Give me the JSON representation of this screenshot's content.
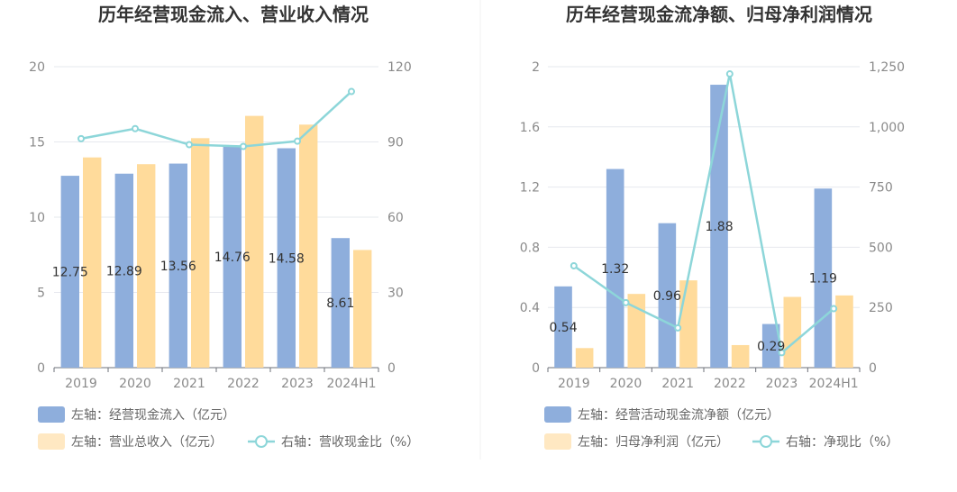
{
  "chart_data": [
    {
      "type": "bar",
      "title": "历年经营现金流入、营业收入情况",
      "categories": [
        "2019",
        "2020",
        "2021",
        "2022",
        "2023",
        "2024H1"
      ],
      "ylim": [
        0,
        20
      ],
      "yticks": [
        "0",
        "5",
        "10",
        "15",
        "20"
      ],
      "y2lim": [
        0,
        120
      ],
      "y2ticks": [
        "0",
        "30",
        "60",
        "90",
        "120"
      ],
      "grid": true,
      "legend_position": "bottom",
      "series": [
        {
          "name": "左轴：经营现金流入（亿元）",
          "kind": "bar",
          "axis": "left",
          "color": "#8eaedc",
          "values": [
            12.75,
            12.89,
            13.56,
            14.76,
            14.58,
            8.61
          ],
          "labels": [
            "12.75",
            "12.89",
            "13.56",
            "14.76",
            "14.58",
            "8.61"
          ]
        },
        {
          "name": "左轴：营业总收入（亿元）",
          "kind": "bar",
          "axis": "left",
          "color": "#ffdb9b",
          "values": [
            13.97,
            13.52,
            15.25,
            16.73,
            16.15,
            7.82
          ]
        },
        {
          "name": "右轴：营收现金比（%）",
          "kind": "line",
          "axis": "right",
          "color": "#8dd6d9",
          "values": [
            91.3,
            95.3,
            88.9,
            88.2,
            90.3,
            110.1
          ]
        }
      ]
    },
    {
      "type": "bar",
      "title": "历年经营现金流净额、归母净利润情况",
      "categories": [
        "2019",
        "2020",
        "2021",
        "2022",
        "2023",
        "2024H1"
      ],
      "ylim": [
        0,
        2
      ],
      "yticks": [
        "0",
        "0.4",
        "0.8",
        "1.2",
        "1.6",
        "2"
      ],
      "y2lim": [
        0,
        1250
      ],
      "y2ticks": [
        "0",
        "250",
        "500",
        "750",
        "1,000",
        "1,250"
      ],
      "grid": true,
      "legend_position": "bottom",
      "series": [
        {
          "name": "左轴：经营活动现金流净额（亿元）",
          "kind": "bar",
          "axis": "left",
          "color": "#8eaedc",
          "values": [
            0.54,
            1.32,
            0.96,
            1.88,
            0.29,
            1.19
          ],
          "labels": [
            "0.54",
            "1.32",
            "0.96",
            "1.88",
            "0.29",
            "1.19"
          ]
        },
        {
          "name": "左轴：归母净利润（亿元）",
          "kind": "bar",
          "axis": "left",
          "color": "#ffdb9b",
          "values": [
            0.13,
            0.49,
            0.58,
            0.15,
            0.47,
            0.48
          ]
        },
        {
          "name": "右轴：净现比（%）",
          "kind": "line",
          "axis": "right",
          "color": "#8dd6d9",
          "values": [
            423,
            270,
            165,
            1220,
            62,
            245
          ]
        }
      ]
    }
  ]
}
